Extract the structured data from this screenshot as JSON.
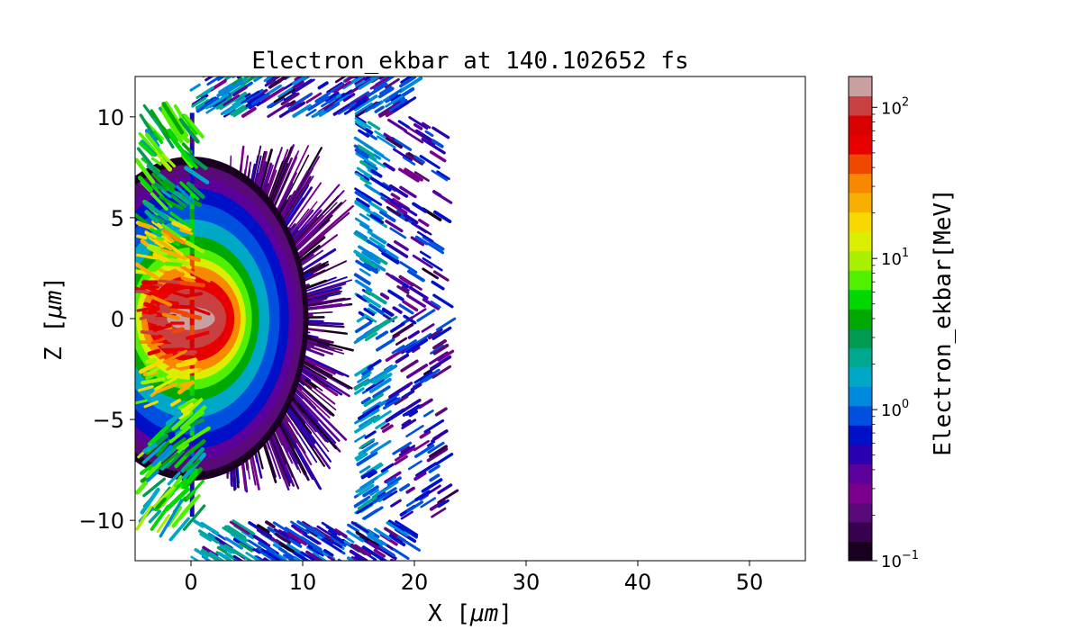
{
  "chart_data": {
    "type": "heatmap",
    "title": "Electron_ekbar at 140.102652 fs",
    "xlabel_text": "X",
    "xlabel_unit": "μm",
    "ylabel_text": "Z",
    "ylabel_unit": "μm",
    "xlim": [
      -5,
      55
    ],
    "ylim": [
      -12,
      12
    ],
    "xticks": [
      0,
      10,
      20,
      30,
      40,
      50
    ],
    "xtick_labels": [
      "0",
      "10",
      "20",
      "30",
      "40",
      "50"
    ],
    "yticks": [
      10,
      5,
      0,
      -5,
      -10
    ],
    "ytick_labels": [
      "10",
      "5",
      "0",
      "−5",
      "−10"
    ],
    "colorbar": {
      "label": "Electron_ekbar[MeV]",
      "scale": "log",
      "range": [
        0.1,
        160
      ],
      "ticks": [
        0.1,
        1,
        10,
        100
      ],
      "tick_base": "10",
      "tick_exponents": [
        "−1",
        "0",
        "1",
        "2"
      ]
    },
    "grid": false,
    "target_box_x": [
      0,
      15
    ],
    "target_box_z": [
      -10,
      10
    ],
    "hotspot_center": [
      3,
      0
    ]
  },
  "colors": {
    "colormap": [
      "#1a0020",
      "#3a0050",
      "#5a0a78",
      "#7a008c",
      "#5b009a",
      "#2a00b0",
      "#0010c8",
      "#0050e0",
      "#0088dd",
      "#00a8c8",
      "#00a890",
      "#009a50",
      "#00a800",
      "#00d800",
      "#50f000",
      "#a8f000",
      "#dcee00",
      "#f8d800",
      "#f8b000",
      "#f88800",
      "#f04800",
      "#e80000",
      "#d80000",
      "#c84040",
      "#c8a0a0"
    ]
  }
}
